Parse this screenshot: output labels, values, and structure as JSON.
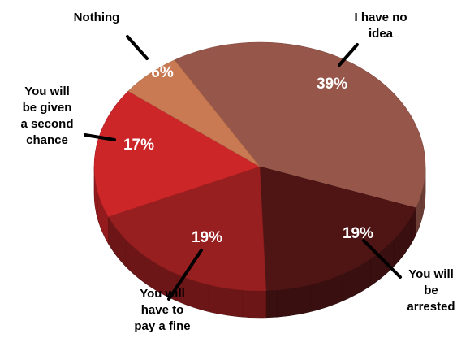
{
  "chart_data": {
    "type": "pie",
    "title": "",
    "style": "3d-tilted",
    "legend": "none",
    "slices": [
      {
        "label": "I have no idea",
        "value": 39,
        "display": "39%",
        "color": "#97564a",
        "label_lines": [
          "I have no",
          "idea"
        ]
      },
      {
        "label": "You will be arrested",
        "value": 19,
        "display": "19%",
        "color": "#4f1515",
        "label_lines": [
          "You will",
          "be",
          "arrested"
        ]
      },
      {
        "label": "You will have to pay a fine",
        "value": 19,
        "display": "19%",
        "color": "#981f20",
        "label_lines": [
          "You will",
          "have to",
          "pay a fine"
        ]
      },
      {
        "label": "You will be given a second chance",
        "value": 17,
        "display": "17%",
        "color": "#cc2629",
        "label_lines": [
          "You will",
          "be given",
          "a second",
          "chance"
        ]
      },
      {
        "label": "Nothing",
        "value": 6,
        "display": "6%",
        "color": "#c97a52",
        "label_lines": [
          "Nothing"
        ]
      }
    ]
  }
}
